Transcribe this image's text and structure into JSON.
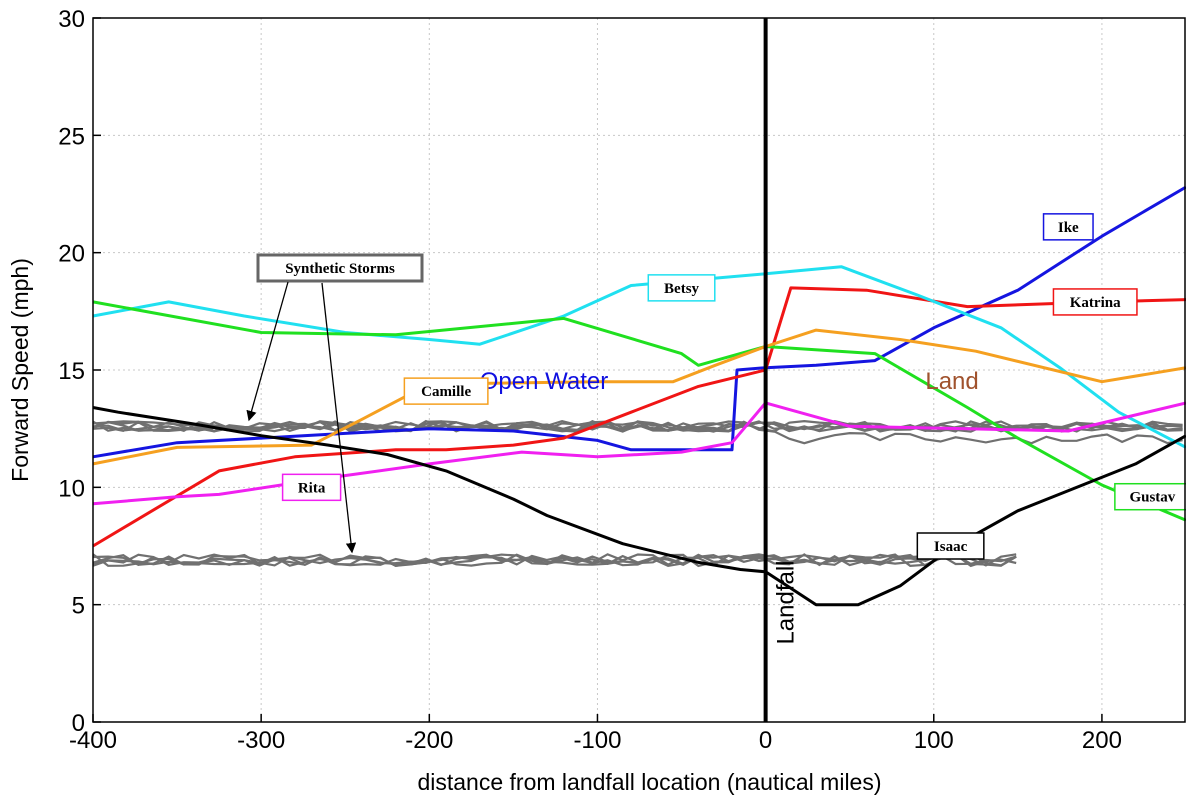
{
  "chart_data": {
    "type": "line",
    "title": "",
    "xlabel": "distance from landfall location (nautical miles)",
    "ylabel": "Forward Speed (mph)",
    "xlim": [
      -400,
      250
    ],
    "ylim": [
      0,
      30
    ],
    "xticks": [
      -400,
      -300,
      -200,
      -100,
      0,
      100,
      200
    ],
    "yticks": [
      0,
      5,
      10,
      15,
      20,
      25,
      30
    ],
    "grid": true,
    "landfall_line": {
      "x": 0,
      "label": "Landfall",
      "color": "#000000"
    },
    "region_labels": [
      {
        "text": "Open Water",
        "x": -170,
        "y": 14.2,
        "color": "#1010e0"
      },
      {
        "text": "Land",
        "x": 95,
        "y": 14.2,
        "color": "#a0522d"
      }
    ],
    "series": [
      {
        "name": "Ike",
        "color": "#1515e0",
        "x": [
          -400,
          -350,
          -300,
          -250,
          -200,
          -150,
          -100,
          -80,
          -20,
          -17,
          0,
          30,
          65,
          100,
          150,
          200,
          250
        ],
        "y": [
          11.3,
          11.9,
          12.1,
          12.3,
          12.5,
          12.4,
          12.0,
          11.6,
          11.6,
          15.0,
          15.1,
          15.2,
          15.4,
          16.8,
          18.4,
          20.7,
          22.8
        ],
        "label_at": [
          180,
          21.1
        ]
      },
      {
        "name": "Katrina",
        "color": "#f01515",
        "x": [
          -400,
          -325,
          -280,
          -220,
          -190,
          -150,
          -120,
          -80,
          -40,
          0,
          15,
          60,
          120,
          200,
          250
        ],
        "y": [
          7.5,
          10.7,
          11.3,
          11.6,
          11.6,
          11.8,
          12.1,
          13.2,
          14.3,
          15.0,
          18.5,
          18.4,
          17.7,
          17.9,
          18.0
        ],
        "label_at": [
          196,
          17.9
        ]
      },
      {
        "name": "Betsy",
        "color": "#20e0f0",
        "x": [
          -400,
          -355,
          -310,
          -250,
          -200,
          -170,
          -120,
          -80,
          0,
          45,
          90,
          140,
          175,
          210,
          250
        ],
        "y": [
          17.3,
          17.9,
          17.3,
          16.6,
          16.3,
          16.1,
          17.3,
          18.6,
          19.1,
          19.4,
          18.2,
          16.8,
          15.1,
          13.2,
          11.7
        ],
        "label_at": [
          -50,
          18.5
        ]
      },
      {
        "name": "Gustav",
        "color": "#20e020",
        "x": [
          -400,
          -300,
          -220,
          -120,
          -50,
          -40,
          0,
          65,
          120,
          150,
          200,
          250
        ],
        "y": [
          17.9,
          16.6,
          16.5,
          17.2,
          15.7,
          15.2,
          16.0,
          15.7,
          13.4,
          12.1,
          10.1,
          8.6
        ],
        "label_at": [
          230,
          9.6
        ]
      },
      {
        "name": "Camille",
        "color": "#f5a020",
        "x": [
          -400,
          -350,
          -270,
          -240,
          -200,
          -100,
          -55,
          -30,
          0,
          30,
          80,
          125,
          200,
          250
        ],
        "y": [
          11.0,
          11.7,
          11.8,
          12.9,
          14.4,
          14.5,
          14.5,
          15.2,
          16.0,
          16.7,
          16.3,
          15.8,
          14.5,
          15.1
        ],
        "label_at": [
          -190,
          14.1
        ]
      },
      {
        "name": "Rita",
        "color": "#f020f0",
        "x": [
          -400,
          -350,
          -325,
          -260,
          -200,
          -145,
          -100,
          -50,
          -20,
          0,
          50,
          120,
          180,
          250
        ],
        "y": [
          9.3,
          9.6,
          9.7,
          10.4,
          11.0,
          11.5,
          11.3,
          11.5,
          11.9,
          13.6,
          12.6,
          12.5,
          12.4,
          13.6
        ],
        "label_at": [
          -270,
          10.0
        ]
      },
      {
        "name": "Isaac",
        "color": "#000000",
        "x": [
          -400,
          -385,
          -340,
          -300,
          -260,
          -225,
          -190,
          -150,
          -130,
          -85,
          -40,
          -15,
          0,
          30,
          55,
          80,
          110,
          150,
          220,
          250
        ],
        "y": [
          13.4,
          13.2,
          12.7,
          12.2,
          11.8,
          11.4,
          10.7,
          9.5,
          8.8,
          7.6,
          6.8,
          6.5,
          6.4,
          5.0,
          5.0,
          5.8,
          7.4,
          9.0,
          11.0,
          12.2
        ],
        "label_at": [
          110,
          7.5
        ]
      }
    ],
    "synthetic_storms": {
      "label": "Synthetic Storms",
      "color": "#707070",
      "x_start": -400,
      "x_end_upper": 250,
      "x_end_lower": 152,
      "upper_mean": 12.6,
      "lower_mean": 6.9
    }
  }
}
